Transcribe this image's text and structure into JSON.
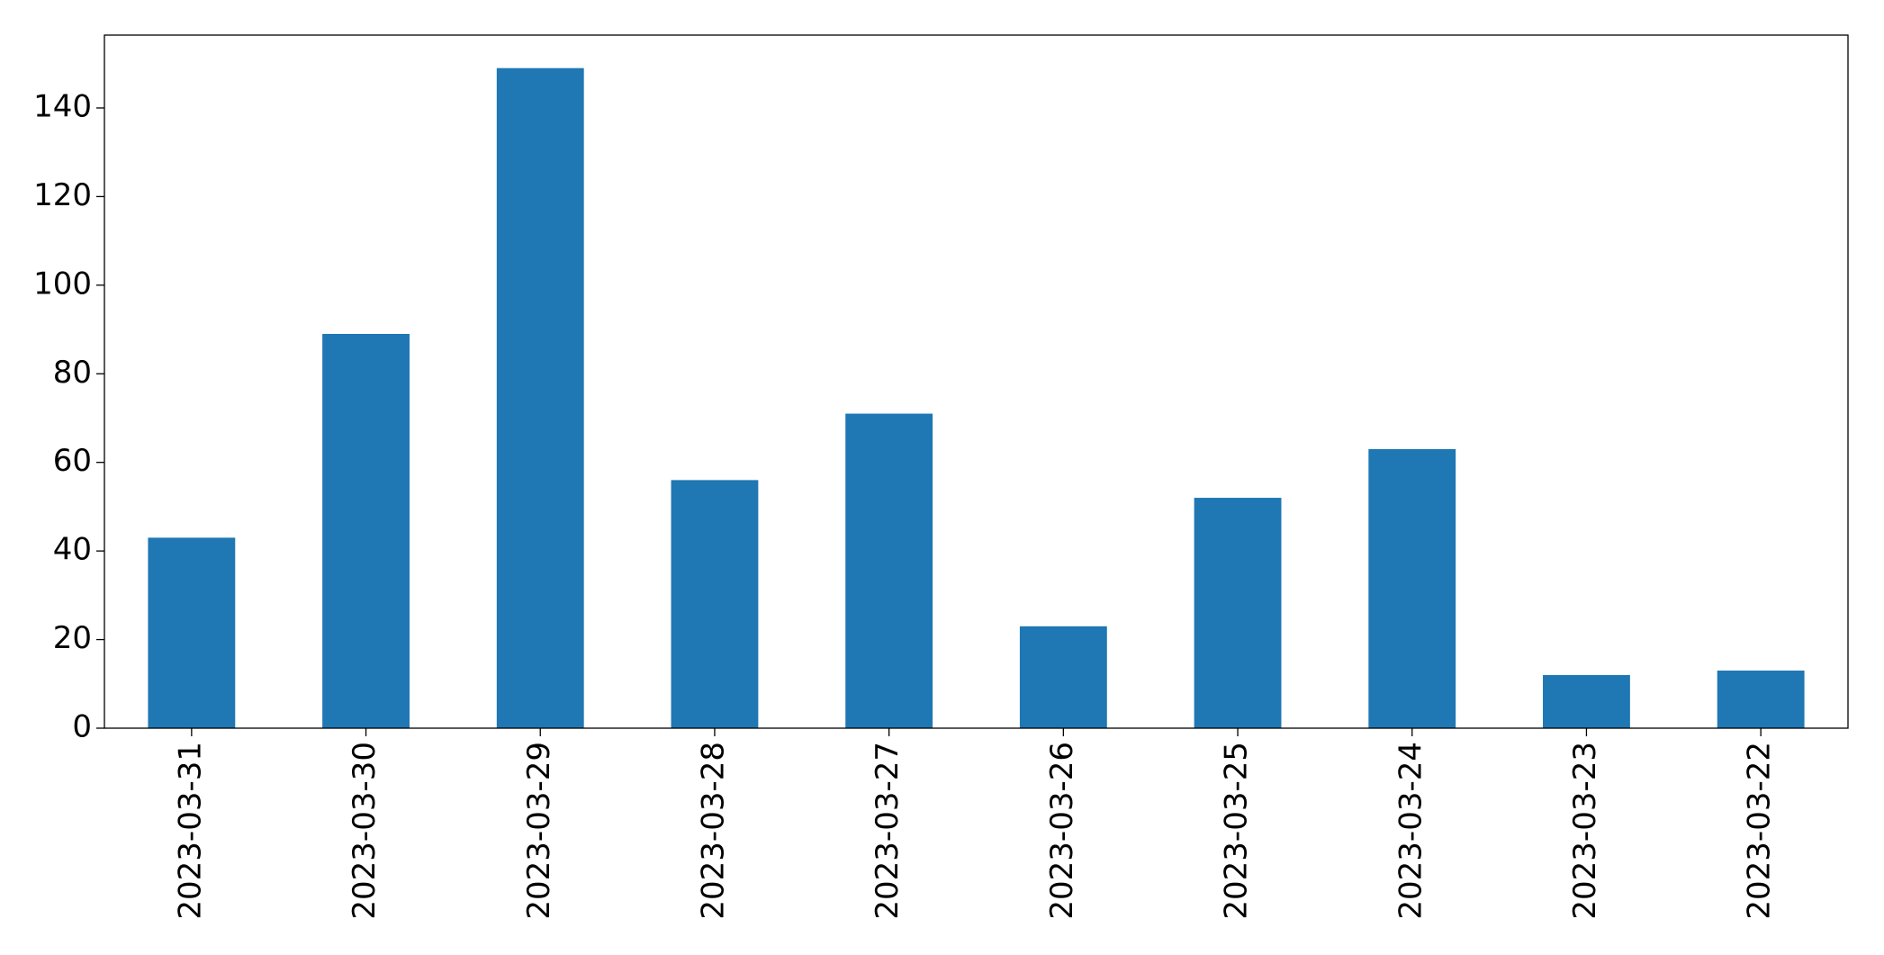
{
  "chart_data": {
    "type": "bar",
    "categories": [
      "2023-03-31",
      "2023-03-30",
      "2023-03-29",
      "2023-03-28",
      "2023-03-27",
      "2023-03-26",
      "2023-03-25",
      "2023-03-24",
      "2023-03-23",
      "2023-03-22"
    ],
    "values": [
      43,
      89,
      149,
      56,
      71,
      23,
      52,
      63,
      12,
      13
    ],
    "color": "#1f77b4",
    "ylim": [
      0,
      156.45
    ],
    "yticks": [
      0,
      20,
      40,
      60,
      80,
      100,
      120,
      140
    ],
    "grid": false
  }
}
